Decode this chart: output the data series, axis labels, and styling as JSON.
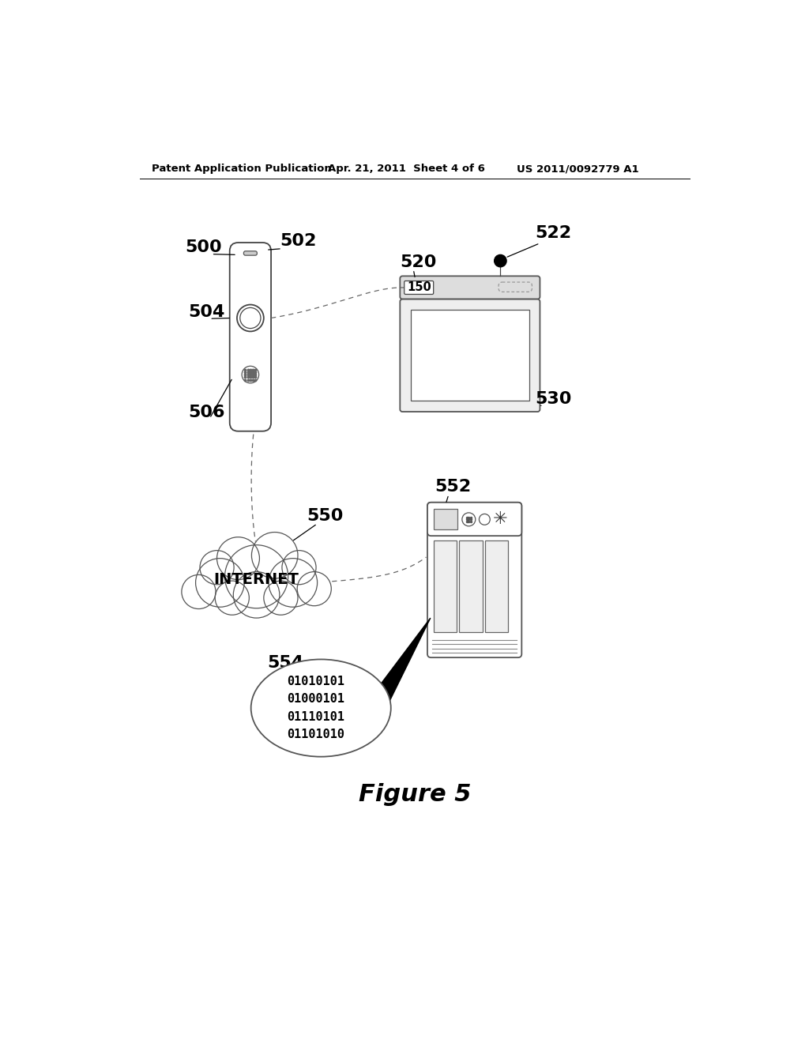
{
  "bg_color": "#ffffff",
  "header_left": "Patent Application Publication",
  "header_mid": "Apr. 21, 2011  Sheet 4 of 6",
  "header_right": "US 2011/0092779 A1",
  "figure_label": "Figure 5",
  "label_500": "500",
  "label_502": "502",
  "label_504": "504",
  "label_506": "506",
  "label_520": "520",
  "label_522": "522",
  "label_530": "530",
  "label_150": "150",
  "label_550": "550",
  "label_552": "552",
  "label_554": "554",
  "internet_text": "INTERNET",
  "binary_text": "01010101\n01000101\n01110101\n01101010"
}
